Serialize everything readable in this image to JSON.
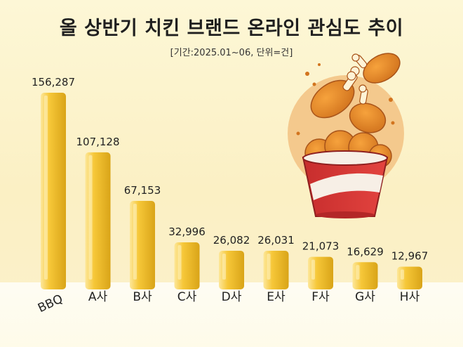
{
  "title": "올 상반기 치킨 브랜드 온라인 관심도 추이",
  "subtitle": "[기간:2025.01~06, 단위=건]",
  "colors": {
    "bar_main": "#f6c738",
    "bar_light": "#fde79a",
    "bar_dark": "#d9a418",
    "background": "#fbf1c8"
  },
  "illustration": {
    "name": "fried-chicken-bucket-illustration"
  },
  "chart_data": {
    "type": "bar",
    "title": "올 상반기 치킨 브랜드 온라인 관심도 추이",
    "subtitle": "[기간:2025.01~06, 단위=건]",
    "categories": [
      "BBQ",
      "A사",
      "B사",
      "C사",
      "D사",
      "E사",
      "F사",
      "G사",
      "H사"
    ],
    "values": [
      156287,
      107128,
      67153,
      32996,
      26082,
      26031,
      21073,
      16629,
      12967
    ],
    "value_labels": [
      "156,287",
      "107,128",
      "67,153",
      "32,996",
      "26,082",
      "26,031",
      "21,073",
      "16,629",
      "12,967"
    ],
    "xlabel": "",
    "ylabel": "",
    "ylim": [
      0,
      160000
    ],
    "grid": false,
    "legend": "none"
  }
}
